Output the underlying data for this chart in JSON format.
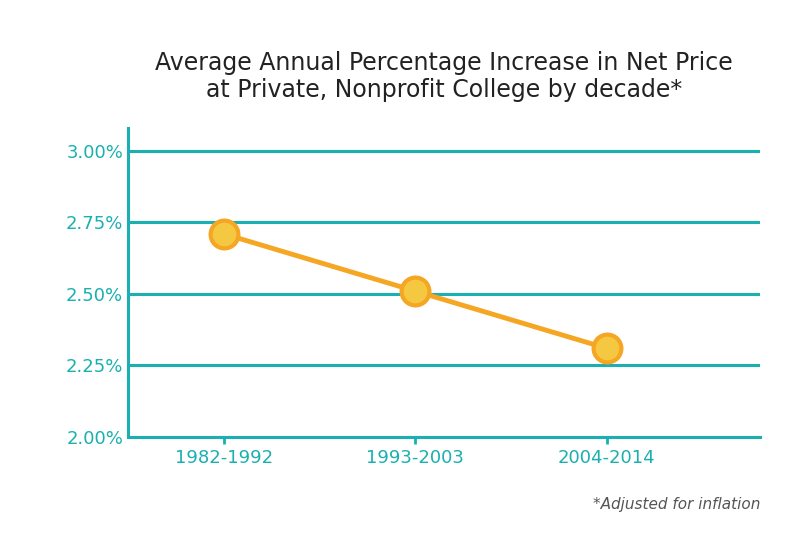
{
  "title": "Average Annual Percentage Increase in Net Price\nat Private, Nonprofit College by decade*",
  "categories": [
    "1982-1992",
    "1993-2003",
    "2004-2014"
  ],
  "values": [
    0.0271,
    0.0251,
    0.0231
  ],
  "line_color": "#F5A623",
  "marker_face_color": "#F5C842",
  "marker_edge_color": "#F5A623",
  "grid_color": "#1AAFB0",
  "background_color": "#FFFFFF",
  "ylim": [
    0.02,
    0.0308
  ],
  "yticks": [
    0.02,
    0.0225,
    0.025,
    0.0275,
    0.03
  ],
  "ytick_labels": [
    "2.00%",
    "2.25%",
    "2.50%",
    "2.75%",
    "3.00%"
  ],
  "footnote": "*Adjusted for inflation",
  "title_fontsize": 17,
  "tick_fontsize": 13,
  "footnote_fontsize": 11,
  "marker_size": 20,
  "line_width": 3.5
}
